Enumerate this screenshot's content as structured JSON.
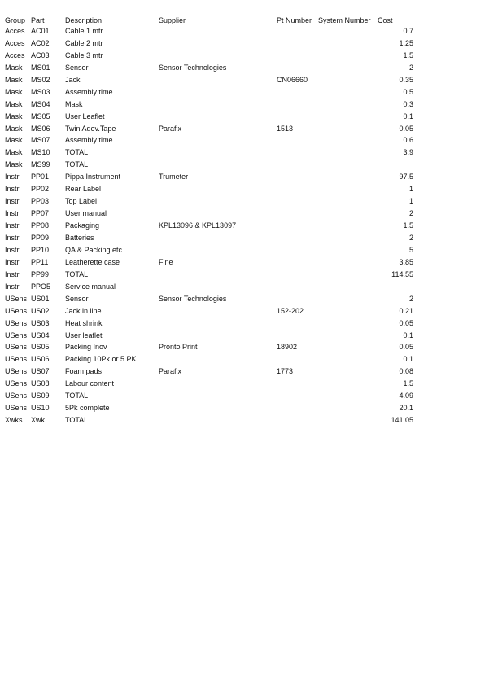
{
  "table": {
    "header": {
      "group": "Group",
      "part": "Part",
      "description": "Description",
      "supplier": "Supplier",
      "pt_number": "Pt Number",
      "system_number": "System Number",
      "cost": "Cost"
    },
    "rows": [
      {
        "group": "Acces",
        "part": "AC01",
        "description": "Cable 1 mtr",
        "cost": "0.7"
      },
      {
        "group": "Acces",
        "part": "AC02",
        "description": "Cable 2 mtr",
        "cost": "1.25"
      },
      {
        "group": "Acces",
        "part": "AC03",
        "description": "Cable 3 mtr",
        "cost": "1.5"
      },
      {
        "group": "Mask",
        "part": "MS01",
        "description": "Sensor",
        "supplier": "Sensor Technologies",
        "cost": "2"
      },
      {
        "group": "Mask",
        "part": "MS02",
        "description": "Jack",
        "pt_number": "CN06660",
        "cost": "0.35"
      },
      {
        "group": "Mask",
        "part": "MS03",
        "description": "Assembly time",
        "cost": "0.5"
      },
      {
        "group": "Mask",
        "part": "MS04",
        "description": "Mask",
        "cost": "0.3"
      },
      {
        "group": "Mask",
        "part": "MS05",
        "description": "User Leaflet",
        "cost": "0.1"
      },
      {
        "group": "Mask",
        "part": "MS06",
        "description": "Twin Adev.Tape",
        "supplier": "Parafix",
        "pt_number": "1513",
        "cost": "0.05"
      },
      {
        "group": "Mask",
        "part": "MS07",
        "description": "Assembly time",
        "cost": "0.6"
      },
      {
        "group": "Mask",
        "part": "MS10",
        "description": "TOTAL",
        "cost": "3.9"
      },
      {
        "group": "Mask",
        "part": "MS99",
        "description": "TOTAL"
      },
      {
        "group": "Instr",
        "part": "PP01",
        "description": "Pippa Instrument",
        "supplier": "Trumeter",
        "cost": "97.5"
      },
      {
        "group": "Instr",
        "part": "PP02",
        "description": "Rear Label",
        "cost": "1"
      },
      {
        "group": "Instr",
        "part": "PP03",
        "description": "Top Label",
        "cost": "1"
      },
      {
        "group": "Instr",
        "part": "PP07",
        "description": "User manual",
        "cost": "2"
      },
      {
        "group": "Instr",
        "part": "PP08",
        "description": "Packaging",
        "supplier": "KPL13096 & KPL13097",
        "cost": "1.5"
      },
      {
        "group": "Instr",
        "part": "PP09",
        "description": "Batteries",
        "cost": "2"
      },
      {
        "group": "Instr",
        "part": "PP10",
        "description": "QA & Packing etc",
        "cost": "5"
      },
      {
        "group": "Instr",
        "part": "PP11",
        "description": "Leatherette case",
        "supplier": "Fine",
        "cost": "3.85"
      },
      {
        "group": "Instr",
        "part": "PP99",
        "description": "TOTAL",
        "cost": "114.55"
      },
      {
        "group": "Instr",
        "part": "PPO5",
        "description": "Service manual"
      },
      {
        "group": "USens",
        "part": "US01",
        "description": "Sensor",
        "supplier": "Sensor Technologies",
        "cost": "2"
      },
      {
        "group": "USens",
        "part": "US02",
        "description": "Jack in line",
        "pt_number": "152-202",
        "cost": "0.21"
      },
      {
        "group": "USens",
        "part": "US03",
        "description": "Heat shrink",
        "cost": "0.05"
      },
      {
        "group": "USens",
        "part": "US04",
        "description": "User leaflet",
        "cost": "0.1"
      },
      {
        "group": "USens",
        "part": "US05",
        "description": "Packing Inov",
        "supplier": "Pronto Print",
        "pt_number": "18902",
        "cost": "0.05"
      },
      {
        "group": "USens",
        "part": "US06",
        "description": "Packing 10Pk or 5 PK",
        "cost": "0.1"
      },
      {
        "group": "USens",
        "part": "US07",
        "description": "Foam pads",
        "supplier": "Parafix",
        "pt_number": "1773",
        "cost": "0.08"
      },
      {
        "group": "USens",
        "part": "US08",
        "description": "Labour content",
        "cost": "1.5"
      },
      {
        "group": "USens",
        "part": "US09",
        "description": "TOTAL",
        "cost": "4.09"
      },
      {
        "group": "USens",
        "part": "US10",
        "description": "5Pk complete",
        "cost": "20.1"
      },
      {
        "group": "Xwks",
        "part": "Xwk",
        "description": "TOTAL",
        "cost": "141.05"
      }
    ]
  }
}
